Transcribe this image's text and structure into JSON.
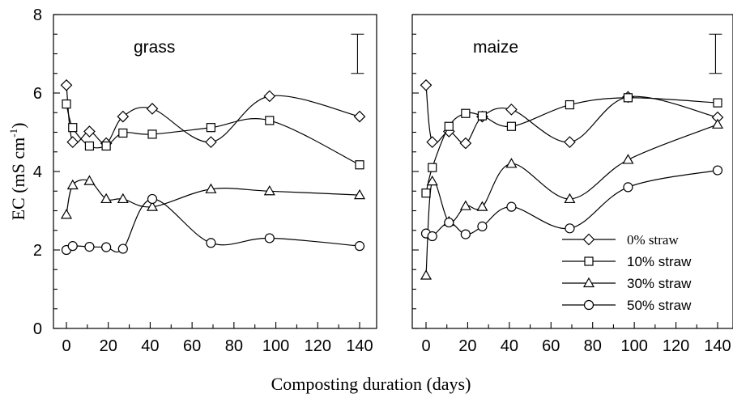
{
  "chart_data": [
    {
      "type": "line",
      "title": "grass",
      "xlabel": "Composting duration (days)",
      "ylabel_main": "EC (mS cm",
      "ylabel_sup": "-1",
      "ylabel_close": ")",
      "xlim": [
        -3,
        145
      ],
      "ylim": [
        0,
        8
      ],
      "xticks": [
        0,
        20,
        40,
        60,
        80,
        100,
        120,
        140
      ],
      "yticks": [
        0,
        2,
        4,
        6,
        8
      ],
      "error_bar": {
        "x": 139,
        "low": 6.5,
        "high": 7.5
      },
      "series": [
        {
          "name": "0% straw",
          "marker": "diamond",
          "x": [
            0,
            3,
            11,
            19,
            27,
            41,
            69,
            97,
            140
          ],
          "y": [
            6.2,
            4.75,
            5.02,
            4.72,
            5.4,
            5.6,
            4.75,
            5.92,
            5.4
          ]
        },
        {
          "name": "10% straw",
          "marker": "square",
          "x": [
            0,
            3,
            11,
            19,
            27,
            41,
            69,
            97,
            140
          ],
          "y": [
            5.72,
            5.12,
            4.65,
            4.65,
            4.98,
            4.95,
            5.12,
            5.3,
            4.17
          ]
        },
        {
          "name": "30% straw",
          "marker": "triangle",
          "x": [
            0,
            3,
            11,
            19,
            27,
            41,
            69,
            97,
            140
          ],
          "y": [
            2.9,
            3.65,
            3.76,
            3.3,
            3.3,
            3.1,
            3.55,
            3.5,
            3.4
          ]
        },
        {
          "name": "50% straw",
          "marker": "circle",
          "x": [
            0,
            3,
            11,
            19,
            27,
            41,
            69,
            97,
            140
          ],
          "y": [
            2.0,
            2.1,
            2.08,
            2.07,
            2.03,
            3.3,
            2.18,
            2.3,
            2.1
          ]
        }
      ]
    },
    {
      "type": "line",
      "title": "maize",
      "xlabel": "Composting duration (days)",
      "xlim": [
        -3,
        145
      ],
      "ylim": [
        0,
        8
      ],
      "xticks": [
        0,
        20,
        40,
        60,
        80,
        100,
        120,
        140
      ],
      "yticks": [
        0,
        2,
        4,
        6,
        8
      ],
      "error_bar": {
        "x": 139,
        "low": 6.5,
        "high": 7.5
      },
      "legend": {
        "position": "bottom-right",
        "entries": [
          "0% straw",
          "10% straw",
          "30% straw",
          "50% straw"
        ]
      },
      "series": [
        {
          "name": "0% straw",
          "marker": "diamond",
          "x": [
            0,
            3,
            11,
            19,
            27,
            41,
            69,
            97,
            140
          ],
          "y": [
            6.2,
            4.75,
            5.02,
            4.72,
            5.4,
            5.58,
            4.75,
            5.9,
            5.38
          ]
        },
        {
          "name": "10% straw",
          "marker": "square",
          "x": [
            0,
            3,
            11,
            19,
            27,
            41,
            69,
            97,
            140
          ],
          "y": [
            3.45,
            4.1,
            5.15,
            5.48,
            5.42,
            5.15,
            5.7,
            5.88,
            5.75
          ]
        },
        {
          "name": "30% straw",
          "marker": "triangle",
          "x": [
            0,
            3,
            11,
            19,
            27,
            41,
            69,
            97,
            140
          ],
          "y": [
            1.35,
            3.75,
            2.72,
            3.12,
            3.1,
            4.2,
            3.3,
            4.3,
            5.2
          ]
        },
        {
          "name": "50% straw",
          "marker": "circle",
          "x": [
            0,
            3,
            11,
            19,
            27,
            41,
            69,
            97,
            140
          ],
          "y": [
            2.42,
            2.35,
            2.7,
            2.4,
            2.6,
            3.1,
            2.55,
            3.6,
            4.03
          ]
        }
      ]
    }
  ]
}
